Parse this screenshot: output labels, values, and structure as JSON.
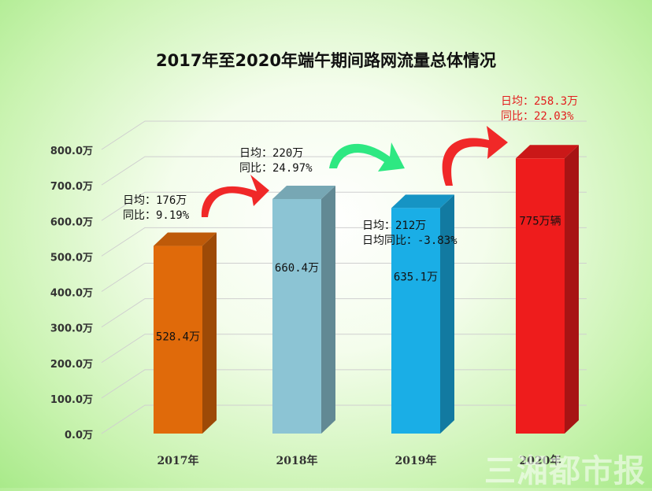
{
  "chart_data": {
    "type": "bar",
    "title": "2017年至2020年端午期间路网流量总体情况",
    "categories": [
      "2017年",
      "2018年",
      "2019年",
      "2020年"
    ],
    "values": [
      528.4,
      660.4,
      635.1,
      775
    ],
    "value_labels": [
      "528.4万",
      "660.4万",
      "635.1万",
      "775万辆"
    ],
    "yticks": [
      "0.0万",
      "100.0万",
      "200.0万",
      "300.0万",
      "400.0万",
      "500.0万",
      "600.0万",
      "700.0万",
      "800.0万"
    ],
    "ylim": [
      0,
      800
    ],
    "grid": true,
    "colors": [
      "#e06a0a",
      "#8cc4d4",
      "#1aaee6",
      "#ee1c1c"
    ],
    "annotations": [
      {
        "lines": [
          "日均：176万",
          "同比：9.19%"
        ],
        "color": "#111111"
      },
      {
        "lines": [
          "日均：220万",
          "同比：24.97%"
        ],
        "color": "#111111"
      },
      {
        "lines": [
          "日均：212万",
          "日均同比：-3.83%"
        ],
        "color": "#111111"
      },
      {
        "lines": [
          "日均：258.3万",
          "同比：22.03%"
        ],
        "color": "#e31e1e"
      }
    ]
  },
  "watermark": "三湘都市报"
}
